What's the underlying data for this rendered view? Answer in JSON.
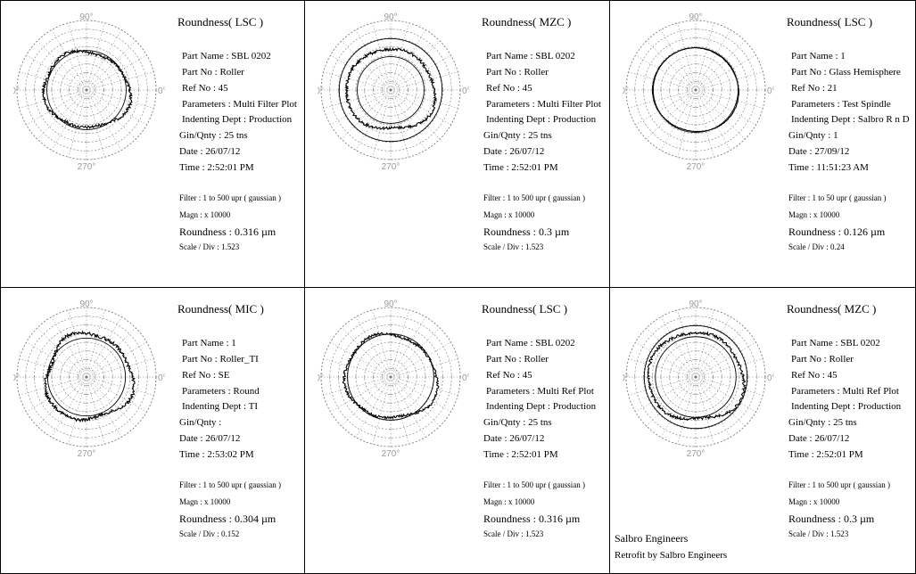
{
  "footer": {
    "company": "Salbro Engineers",
    "retrofit": "Retrofit by Salbro Engineers"
  },
  "angle_labels": [
    "90°",
    "180°",
    "0°",
    "270°"
  ],
  "plot_color": "#000000",
  "grid_color": "#7a7a7a",
  "chart_data": [
    {
      "type": "polar",
      "title": "Roundness( LSC )",
      "part_name": "Part Name : SBL 0202",
      "part_no": "Part No : Roller",
      "ref_no": "Ref No : 45",
      "parameters": "Parameters : Multi Filter Plot",
      "indenting_dept": "Indenting Dept : Production",
      "gin_qnty": "Gin/Qnty : 25 tns",
      "date": "Date : 26/07/12",
      "time": "Time : 2:52:01 PM",
      "filter": "Filter :    1 to 500 upr ( gaussian )",
      "magn": "Magn :   x 10000",
      "roundness": "Roundness :  0.316  µm",
      "scale_div": "Scale / Div : 1.523",
      "reference_circles": [
        0.57
      ],
      "profile": {
        "base": 0.58,
        "harmonics": [
          [
            2,
            0.045,
            0.5
          ],
          [
            3,
            0.02,
            1.1
          ],
          [
            5,
            0.015,
            2.0
          ]
        ],
        "noise": 0.02
      }
    },
    {
      "type": "polar",
      "title": "Roundness( MZC )",
      "part_name": "Part Name : SBL 0202",
      "part_no": "Part No : Roller",
      "ref_no": "Ref No : 45",
      "parameters": "Parameters : Multi Filter Plot",
      "indenting_dept": "Indenting Dept : Production",
      "gin_qnty": "Gin/Qnty : 25 tns",
      "date": "Date : 26/07/12",
      "time": "Time : 2:52:01 PM",
      "filter": "Filter :    1 to 500 upr ( gaussian )",
      "magn": "Magn :   x 10000",
      "roundness": "Roundness :  0.3  µm",
      "scale_div": "Scale / Div : 1.523",
      "reference_circles": [
        0.74,
        0.48
      ],
      "profile": {
        "base": 0.61,
        "harmonics": [
          [
            2,
            0.035,
            0.3
          ],
          [
            3,
            0.02,
            1.6
          ],
          [
            4,
            0.015,
            2.4
          ]
        ],
        "noise": 0.02
      }
    },
    {
      "type": "polar",
      "title": "Roundness( LSC )",
      "part_name": "Part Name : 1",
      "part_no": "Part No : Glass Hemisphere",
      "ref_no": "Ref No : 21",
      "parameters": "Parameters : Test Spindle",
      "indenting_dept": "Indenting Dept : Salbro R n D",
      "gin_qnty": "Gin/Qnty : 1",
      "date": "Date : 27/09/12",
      "time": "Time : 11:51:23 AM",
      "filter": "Filter :    1 to 50 upr ( gaussian )",
      "magn": "Magn :   x 10000",
      "roundness": "Roundness :  0.126  µm",
      "scale_div": "Scale / Div : 0.24",
      "reference_circles": [
        0.61
      ],
      "profile": {
        "base": 0.61,
        "harmonics": [
          [
            2,
            0.012,
            0.8
          ],
          [
            3,
            0.006,
            1.9
          ]
        ],
        "noise": 0.004
      }
    },
    {
      "type": "polar",
      "title": "Roundness( MIC )",
      "part_name": "Part Name : 1",
      "part_no": "Part No : Roller_TI",
      "ref_no": "Ref No : SE",
      "parameters": "Parameters : Round",
      "indenting_dept": "Indenting Dept : TI",
      "gin_qnty": "Gin/Qnty :",
      "date": "Date : 26/07/12",
      "time": "Time : 2:53:02 PM",
      "filter": "Filter :    1 to 500 upr ( gaussian )",
      "magn": "Magn :   x 10000",
      "roundness": "Roundness :  0.304  µm",
      "scale_div": "Scale / Div : 0.152",
      "reference_circles": [
        0.56
      ],
      "profile": {
        "base": 0.62,
        "harmonics": [
          [
            1,
            0.03,
            0.2
          ],
          [
            3,
            0.04,
            0.9
          ],
          [
            5,
            0.02,
            2.2
          ]
        ],
        "noise": 0.022
      }
    },
    {
      "type": "polar",
      "title": "Roundness( LSC )",
      "part_name": "Part Name : SBL 0202",
      "part_no": "Part No : Roller",
      "ref_no": "Ref No : 45",
      "parameters": "Parameters : Multi Ref Plot",
      "indenting_dept": "Indenting Dept : Production",
      "gin_qnty": "Gin/Qnty : 25 tns",
      "date": "Date : 26/07/12",
      "time": "Time : 2:52:01 PM",
      "filter": "Filter :    1 to 500 upr ( gaussian )",
      "magn": "Magn :   x 10000",
      "roundness": "Roundness :  0.316  µm",
      "scale_div": "Scale / Div : 1.523",
      "reference_circles": [
        0.62
      ],
      "profile": {
        "base": 0.63,
        "harmonics": [
          [
            2,
            0.04,
            0.6
          ],
          [
            3,
            0.025,
            1.3
          ],
          [
            5,
            0.015,
            2.6
          ]
        ],
        "noise": 0.018
      }
    },
    {
      "type": "polar",
      "title": "Roundness( MZC )",
      "part_name": "Part Name : SBL 0202",
      "part_no": "Part No : Roller",
      "ref_no": "Ref No : 45",
      "parameters": "Parameters : Multi Ref Plot",
      "indenting_dept": "Indenting Dept : Production",
      "gin_qnty": "Gin/Qnty : 25 tns",
      "date": "Date : 26/07/12",
      "time": "Time : 2:52:01 PM",
      "filter": "Filter :    1 to 500 upr ( gaussian )",
      "magn": "Magn :   x 10000",
      "roundness": "Roundness :  0.3  µm",
      "scale_div": "Scale / Div : 1.523",
      "reference_circles": [
        0.74,
        0.58
      ],
      "profile": {
        "base": 0.66,
        "harmonics": [
          [
            2,
            0.035,
            0.4
          ],
          [
            3,
            0.02,
            1.5
          ],
          [
            4,
            0.02,
            2.2
          ]
        ],
        "noise": 0.02
      }
    }
  ]
}
